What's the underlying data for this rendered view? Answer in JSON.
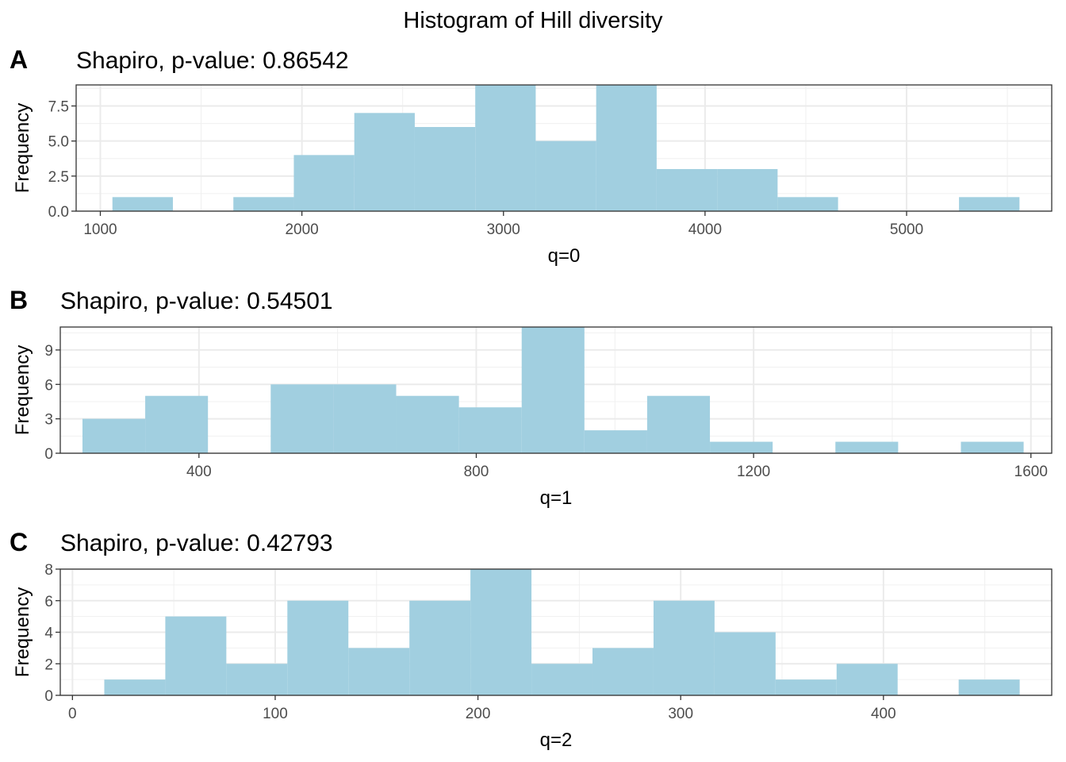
{
  "title": "Histogram of Hill diversity",
  "bar_color": "#a1cfe0",
  "chart_data": [
    {
      "type": "bar",
      "panel_label": "A",
      "subtitle": "Shapiro, p-value: 0.86542",
      "xlabel": "q=0",
      "ylabel": "Frequency",
      "x_ticks": [
        1000,
        2000,
        3000,
        4000,
        5000
      ],
      "y_ticks": [
        0,
        2.5,
        5,
        7.5
      ],
      "y_tick_labels": [
        "0.0",
        "2.5",
        "5.0",
        "7.5"
      ],
      "xlim": [
        880,
        5720
      ],
      "ylim": [
        0,
        9
      ],
      "bin_width": 300,
      "bins_start": [
        1060,
        1360,
        1660,
        1960,
        2260,
        2560,
        2860,
        3160,
        3460,
        3760,
        4060,
        4360,
        4660,
        4960,
        5260
      ],
      "values": [
        1,
        0,
        1,
        4,
        7,
        6,
        9,
        5,
        9,
        3,
        3,
        1,
        0,
        0,
        1
      ]
    },
    {
      "type": "bar",
      "panel_label": "B",
      "subtitle": "Shapiro, p-value: 0.54501",
      "xlabel": "q=1",
      "ylabel": "Frequency",
      "x_ticks": [
        400,
        800,
        1200,
        1600
      ],
      "y_ticks": [
        0,
        3,
        6,
        9
      ],
      "y_tick_labels": [
        "0",
        "3",
        "6",
        "9"
      ],
      "xlim": [
        200,
        1630
      ],
      "ylim": [
        0,
        11
      ],
      "bin_width": 90.5,
      "bins_start": [
        232,
        322.5,
        413,
        503.5,
        594,
        684.5,
        775,
        865.5,
        956,
        1046.5,
        1137,
        1227.5,
        1318,
        1408.5,
        1499
      ],
      "values": [
        3,
        5,
        0,
        6,
        6,
        5,
        4,
        11,
        2,
        5,
        1,
        0,
        1,
        0,
        1
      ]
    },
    {
      "type": "bar",
      "panel_label": "C",
      "subtitle": "Shapiro, p-value: 0.42793",
      "xlabel": "q=2",
      "ylabel": "Frequency",
      "x_ticks": [
        0,
        100,
        200,
        300,
        400
      ],
      "y_ticks": [
        0,
        2,
        4,
        6,
        8
      ],
      "y_tick_labels": [
        "0",
        "2",
        "4",
        "6",
        "8"
      ],
      "xlim": [
        -6,
        483
      ],
      "ylim": [
        0,
        8
      ],
      "bin_width": 30.1,
      "bins_start": [
        15.7,
        45.8,
        75.9,
        106,
        136.1,
        166.2,
        196.3,
        226.4,
        256.5,
        286.6,
        316.7,
        346.8,
        376.9,
        407,
        437.1
      ],
      "values": [
        1,
        5,
        2,
        6,
        3,
        6,
        8,
        2,
        3,
        6,
        4,
        1,
        2,
        0,
        1
      ]
    }
  ]
}
